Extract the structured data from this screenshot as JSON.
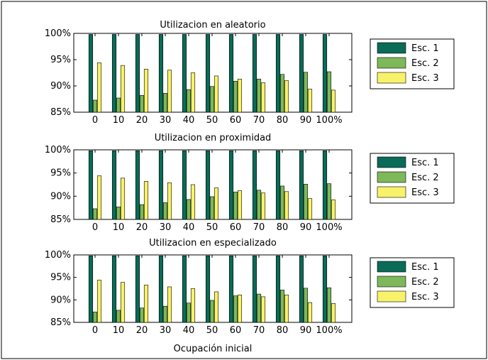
{
  "colors": {
    "esc1": "#0a6b57",
    "esc2": "#7db85a",
    "esc3": "#f7f26a"
  },
  "xlabel": "Ocupación inicial",
  "chart_data": [
    {
      "type": "bar",
      "title": "Utilizacion en aleatorio",
      "categories": [
        "0",
        "10",
        "20",
        "30",
        "40",
        "50",
        "60",
        "70",
        "80",
        "90",
        "100%"
      ],
      "yticks": [
        "85%",
        "90%",
        "95%",
        "100%"
      ],
      "ylim": [
        0.85,
        1.0
      ],
      "legend_position": "right",
      "series": [
        {
          "name": "Esc. 1",
          "values": [
            0.998,
            0.998,
            0.998,
            0.998,
            0.998,
            0.998,
            0.998,
            0.998,
            0.998,
            0.998,
            0.998
          ]
        },
        {
          "name": "Esc. 2",
          "values": [
            0.873,
            0.877,
            0.882,
            0.886,
            0.893,
            0.899,
            0.909,
            0.913,
            0.922,
            0.926,
            0.927
          ]
        },
        {
          "name": "Esc. 3",
          "values": [
            0.944,
            0.939,
            0.932,
            0.93,
            0.925,
            0.919,
            0.913,
            0.906,
            0.91,
            0.894,
            0.892
          ]
        }
      ]
    },
    {
      "type": "bar",
      "title": "Utilizacion en proximidad",
      "categories": [
        "0",
        "10",
        "20",
        "30",
        "40",
        "50",
        "60",
        "70",
        "80",
        "90",
        "100%"
      ],
      "yticks": [
        "85%",
        "90%",
        "95%",
        "100%"
      ],
      "ylim": [
        0.85,
        1.0
      ],
      "legend_position": "right",
      "series": [
        {
          "name": "Esc. 1",
          "values": [
            0.998,
            0.998,
            0.998,
            0.998,
            0.998,
            0.998,
            0.998,
            0.998,
            0.998,
            0.998,
            0.998
          ]
        },
        {
          "name": "Esc. 2",
          "values": [
            0.873,
            0.877,
            0.882,
            0.886,
            0.893,
            0.899,
            0.909,
            0.913,
            0.922,
            0.926,
            0.927
          ]
        },
        {
          "name": "Esc. 3",
          "values": [
            0.944,
            0.939,
            0.932,
            0.929,
            0.925,
            0.918,
            0.912,
            0.907,
            0.91,
            0.895,
            0.892
          ]
        }
      ]
    },
    {
      "type": "bar",
      "title": "Utilizacion en especializado",
      "categories": [
        "0",
        "10",
        "20",
        "30",
        "40",
        "50",
        "60",
        "70",
        "80",
        "90",
        "100%"
      ],
      "yticks": [
        "85%",
        "90%",
        "95%",
        "100%"
      ],
      "ylim": [
        0.85,
        1.0
      ],
      "legend_position": "right",
      "series": [
        {
          "name": "Esc. 1",
          "values": [
            0.998,
            0.998,
            0.998,
            0.998,
            0.998,
            0.998,
            0.998,
            0.998,
            0.998,
            0.998,
            0.998
          ]
        },
        {
          "name": "Esc. 2",
          "values": [
            0.873,
            0.877,
            0.882,
            0.886,
            0.893,
            0.899,
            0.909,
            0.913,
            0.922,
            0.926,
            0.927
          ]
        },
        {
          "name": "Esc. 3",
          "values": [
            0.944,
            0.939,
            0.933,
            0.929,
            0.925,
            0.918,
            0.911,
            0.907,
            0.911,
            0.894,
            0.892
          ]
        }
      ]
    }
  ]
}
